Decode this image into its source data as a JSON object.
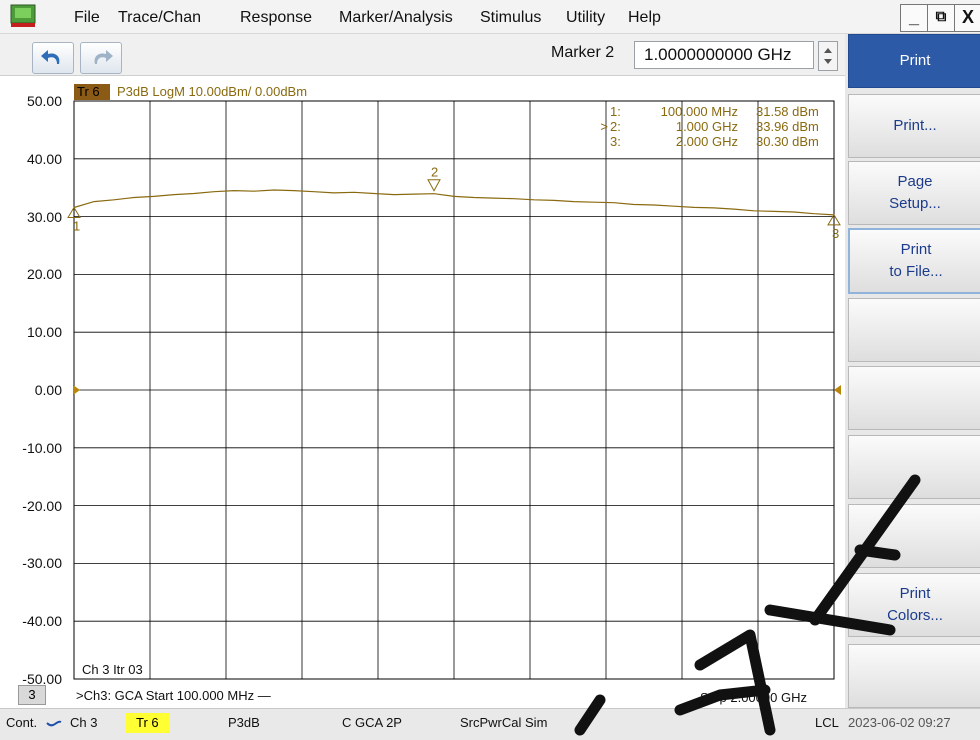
{
  "menu": {
    "items": [
      "File",
      "Trace/Chan",
      "Response",
      "Marker/Analysis",
      "Stimulus",
      "Utility",
      "Help"
    ],
    "window_buttons": [
      "_",
      "⧉",
      "X"
    ]
  },
  "toolbar": {
    "marker_label": "Marker 2",
    "marker_value": "1.0000000000 GHz"
  },
  "trace": {
    "badge": "Tr 6",
    "info": "P3dB LogM 10.00dBm/ 0.00dBm",
    "color": "#8a6a10"
  },
  "markers": [
    {
      "id": "1:",
      "active": "",
      "freq": "100.000 MHz",
      "value": "31.58 dBm"
    },
    {
      "id": "2:",
      "active": ">",
      "freq": "1.000 GHz",
      "value": "33.96 dBm"
    },
    {
      "id": "3:",
      "active": "",
      "freq": "2.000 GHz",
      "value": "30.30 dBm"
    }
  ],
  "chart_data": {
    "type": "line",
    "ylim": [
      -50,
      50
    ],
    "xlim_ghz": [
      0.1,
      2.0
    ],
    "yticks": [
      "50.00",
      "40.00",
      "30.00",
      "20.00",
      "10.00",
      "0.00",
      "-10.00",
      "-20.00",
      "-30.00",
      "-40.00",
      "-50.00"
    ],
    "x_ghz": [
      0.1,
      0.15,
      0.2,
      0.25,
      0.3,
      0.35,
      0.4,
      0.45,
      0.5,
      0.55,
      0.6,
      0.65,
      0.7,
      0.75,
      0.8,
      0.85,
      0.9,
      0.95,
      1.0,
      1.05,
      1.1,
      1.15,
      1.2,
      1.25,
      1.3,
      1.35,
      1.4,
      1.45,
      1.5,
      1.55,
      1.6,
      1.65,
      1.7,
      1.75,
      1.8,
      1.85,
      1.9,
      1.95,
      2.0
    ],
    "y_dbm": [
      31.58,
      32.6,
      32.9,
      33.3,
      33.5,
      33.8,
      34.0,
      34.3,
      34.5,
      34.4,
      34.6,
      34.5,
      34.3,
      34.1,
      34.2,
      34.0,
      33.8,
      33.9,
      33.96,
      33.5,
      33.3,
      33.2,
      33.1,
      32.9,
      32.8,
      32.6,
      32.5,
      32.4,
      32.1,
      32.0,
      31.8,
      31.6,
      31.5,
      31.3,
      31.0,
      30.9,
      30.8,
      30.5,
      30.3
    ],
    "marker_labels": [
      "1",
      "2",
      "3"
    ],
    "marker_x_ghz": [
      0.1,
      1.0,
      2.0
    ],
    "reference_level_dbm": 0
  },
  "channel": {
    "label": "Ch 3  Itr 03",
    "number": "3",
    "sweep_start": ">Ch3: GCA  Start  100.000 MHz —",
    "sweep_stop": "Stop  2.00000 GHz"
  },
  "softkeys": [
    {
      "line1": "Print",
      "line2": ""
    },
    {
      "line1": "Print...",
      "line2": ""
    },
    {
      "line1": "Page",
      "line2": "Setup..."
    },
    {
      "line1": "Print",
      "line2": "to File..."
    },
    {
      "line1": "",
      "line2": ""
    },
    {
      "line1": "",
      "line2": ""
    },
    {
      "line1": "",
      "line2": ""
    },
    {
      "line1": "",
      "line2": ""
    },
    {
      "line1": "Print",
      "line2": "Colors..."
    },
    {
      "line1": "",
      "line2": ""
    }
  ],
  "status": {
    "mode": "Cont.",
    "channel": "Ch 3",
    "trace": "Tr 6",
    "measurement": "P3dB",
    "cal": "C  GCA 2P",
    "src": "SrcPwrCal Sim",
    "lcl": "LCL",
    "datetime": "2023-06-02 09:27"
  },
  "watermark_color": "#111111"
}
